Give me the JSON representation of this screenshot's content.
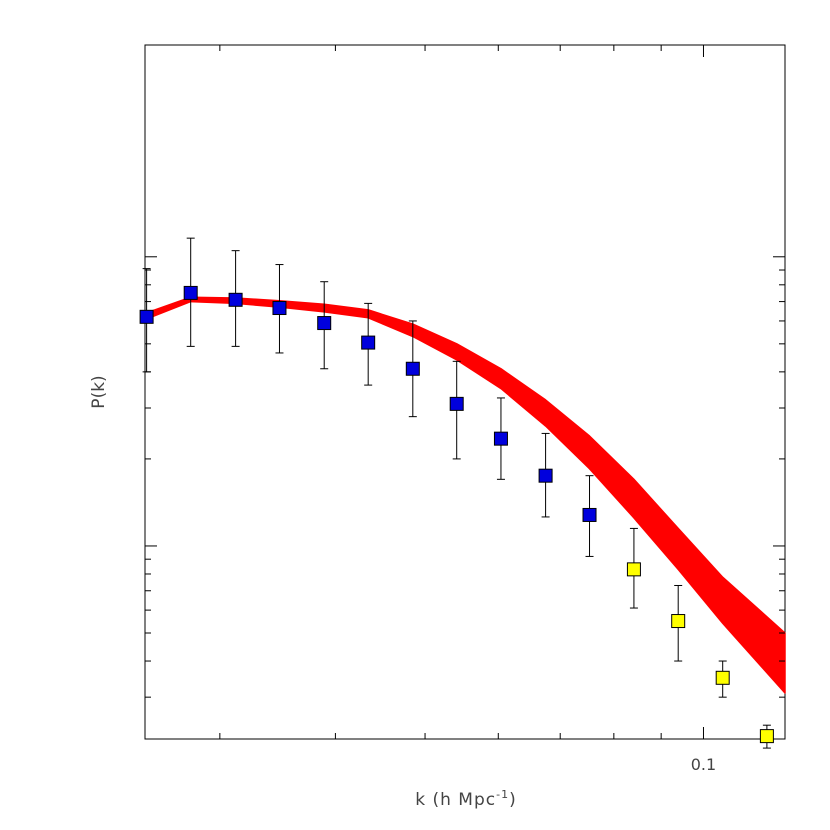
{
  "chart_data": {
    "type": "scatter",
    "xlabel": "k (h Mpc",
    "xlabel_sup": "-1",
    "xlabel_close": ")",
    "ylabel": "P(k)",
    "x_scale": "log",
    "y_scale": "log",
    "xlim": [
      0.0249,
      0.1225
    ],
    "x_tick_labels": [
      {
        "value": 0.1,
        "label": "0.1"
      }
    ],
    "y_major_ticks": [
      10,
      100
    ],
    "y_minor_ticks": [
      3,
      4,
      5,
      6,
      7,
      8,
      9,
      20,
      30,
      40,
      50,
      60,
      70,
      80,
      90
    ],
    "x_minor_ticks": [
      0.03,
      0.04,
      0.05,
      0.06,
      0.07,
      0.08,
      0.09
    ],
    "ylim": [
      2.15,
      540
    ],
    "grid": false,
    "series": [
      {
        "marker": "square",
        "color": "#0000dd",
        "points": [
          {
            "x": 0.025,
            "y": 62.0,
            "lo": 40.0,
            "hi": 91.0
          },
          {
            "x": 0.0279,
            "y": 75.0,
            "lo": 49.0,
            "hi": 116.0
          },
          {
            "x": 0.0312,
            "y": 71.0,
            "lo": 49.0,
            "hi": 105.0
          },
          {
            "x": 0.0348,
            "y": 66.5,
            "lo": 46.5,
            "hi": 94.0
          },
          {
            "x": 0.0389,
            "y": 59.0,
            "lo": 41.0,
            "hi": 82.0
          },
          {
            "x": 0.0434,
            "y": 50.5,
            "lo": 36.0,
            "hi": 69.0
          },
          {
            "x": 0.0485,
            "y": 41.0,
            "lo": 28.0,
            "hi": 60.0
          },
          {
            "x": 0.0541,
            "y": 31.0,
            "lo": 20.0,
            "hi": 43.5
          },
          {
            "x": 0.0604,
            "y": 23.5,
            "lo": 17.0,
            "hi": 32.5
          },
          {
            "x": 0.0675,
            "y": 17.5,
            "lo": 12.6,
            "hi": 24.5
          },
          {
            "x": 0.0753,
            "y": 12.8,
            "lo": 9.2,
            "hi": 17.5
          }
        ]
      },
      {
        "marker": "square",
        "color": "#ffff00",
        "points": [
          {
            "x": 0.0841,
            "y": 8.3,
            "lo": 6.1,
            "hi": 11.5
          },
          {
            "x": 0.0939,
            "y": 5.5,
            "lo": 4.0,
            "hi": 7.3
          },
          {
            "x": 0.1049,
            "y": 3.5,
            "lo": 3.0,
            "hi": 4.0
          },
          {
            "x": 0.1171,
            "y": 2.2,
            "lo": 2.0,
            "hi": 2.4
          }
        ]
      }
    ],
    "band": {
      "color": "#ff0000",
      "x": [
        0.025,
        0.0279,
        0.0312,
        0.0348,
        0.0389,
        0.0434,
        0.0485,
        0.0541,
        0.0604,
        0.0675,
        0.0753,
        0.0841,
        0.0939,
        0.1049,
        0.1225
      ],
      "lower": [
        61.0,
        70.0,
        69.0,
        67.0,
        64.5,
        61.5,
        53.0,
        44.0,
        35.0,
        26.0,
        18.5,
        12.5,
        8.3,
        5.4,
        3.1
      ],
      "upper": [
        64.0,
        72.5,
        72.0,
        70.5,
        68.5,
        65.5,
        58.5,
        50.0,
        41.0,
        32.0,
        24.0,
        17.0,
        11.5,
        7.8,
        5.0
      ]
    }
  }
}
